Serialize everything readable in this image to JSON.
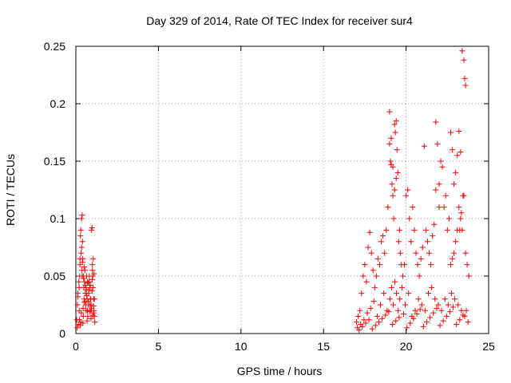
{
  "chart_data": {
    "type": "scatter",
    "title": "Day 329 of 2014, Rate Of TEC Index for receiver sur4",
    "xlabel": "GPS time / hours",
    "ylabel": "ROTI / TECUs",
    "xlim": [
      0,
      25
    ],
    "ylim": [
      0,
      0.25
    ],
    "x_ticks": [
      "0",
      "5",
      "10",
      "15",
      "20",
      "25"
    ],
    "y_ticks": [
      "0",
      "0.05",
      "0.1",
      "0.15",
      "0.2",
      "0.25"
    ],
    "grid": true,
    "marker": "+",
    "color": "#ff0000",
    "series": [
      {
        "x": [
          0.05,
          0.1,
          0.12,
          0.18,
          0.2,
          0.25,
          0.28,
          0.3,
          0.32,
          0.35,
          0.38,
          0.4,
          0.42,
          0.45,
          0.48,
          0.5,
          0.52,
          0.55,
          0.58,
          0.6,
          0.62,
          0.65,
          0.68,
          0.7,
          0.72,
          0.75,
          0.78,
          0.8,
          0.82,
          0.85,
          0.88,
          0.9,
          0.92,
          0.95,
          0.98,
          1.0,
          1.02,
          1.05,
          1.08,
          1.1,
          1.12,
          1.15,
          0.15,
          0.22,
          0.33,
          0.44,
          0.55,
          0.66,
          0.77,
          0.88,
          0.99,
          1.1,
          0.25,
          0.35,
          0.4,
          0.5,
          0.7,
          0.9,
          1.0,
          1.05,
          0.08,
          0.3,
          0.45,
          0.62,
          0.85,
          1.12,
          0.2,
          0.38,
          0.58,
          0.75,
          0.95,
          1.08,
          0.27,
          0.43,
          0.68,
          0.92,
          1.02,
          0.13,
          0.53,
          0.83,
          0.36,
          0.47,
          0.57,
          0.98,
          1.07,
          0.23,
          0.73,
          0.64
        ],
        "y": [
          0.012,
          0.025,
          0.035,
          0.045,
          0.02,
          0.06,
          0.085,
          0.09,
          0.07,
          0.1,
          0.103,
          0.08,
          0.065,
          0.05,
          0.04,
          0.03,
          0.045,
          0.055,
          0.035,
          0.025,
          0.04,
          0.05,
          0.03,
          0.02,
          0.015,
          0.025,
          0.035,
          0.045,
          0.05,
          0.04,
          0.03,
          0.02,
          0.025,
          0.09,
          0.092,
          0.06,
          0.05,
          0.04,
          0.03,
          0.02,
          0.015,
          0.01,
          0.008,
          0.012,
          0.018,
          0.022,
          0.028,
          0.033,
          0.038,
          0.042,
          0.047,
          0.052,
          0.065,
          0.075,
          0.062,
          0.058,
          0.045,
          0.03,
          0.055,
          0.065,
          0.005,
          0.01,
          0.015,
          0.02,
          0.025,
          0.03,
          0.04,
          0.05,
          0.035,
          0.028,
          0.022,
          0.018,
          0.007,
          0.009,
          0.011,
          0.013,
          0.016,
          0.032,
          0.027,
          0.019,
          0.055,
          0.048,
          0.042,
          0.037,
          0.024,
          0.05,
          0.044,
          0.038
        ]
      },
      {
        "x": [
          17.0,
          17.1,
          17.2,
          17.3,
          17.4,
          17.5,
          17.6,
          17.7,
          17.8,
          17.9,
          18.0,
          18.1,
          18.2,
          18.3,
          18.4,
          18.5,
          18.6,
          18.7,
          18.8,
          18.9,
          19.0,
          19.05,
          19.1,
          19.15,
          19.2,
          19.25,
          19.3,
          19.35,
          19.4,
          19.45,
          19.5,
          19.55,
          19.6,
          19.65,
          19.7,
          19.8,
          19.9,
          20.0,
          20.1,
          20.2,
          20.3,
          20.4,
          20.5,
          20.6,
          20.7,
          20.8,
          20.9,
          21.0,
          21.1,
          21.2,
          21.3,
          21.4,
          21.5,
          21.6,
          21.7,
          21.8,
          21.9,
          22.0,
          22.1,
          22.2,
          22.3,
          22.4,
          22.5,
          22.6,
          22.7,
          22.8,
          22.9,
          23.0,
          23.1,
          23.2,
          23.3,
          23.4,
          23.5,
          23.6,
          23.7,
          23.8,
          17.05,
          17.25,
          17.45,
          17.65,
          17.85,
          18.05,
          18.25,
          18.45,
          18.65,
          18.85,
          19.02,
          19.12,
          19.22,
          19.32,
          19.42,
          19.52,
          19.62,
          19.75,
          19.95,
          20.15,
          20.35,
          20.55,
          20.75,
          20.95,
          21.15,
          21.35,
          21.55,
          21.75,
          21.95,
          22.15,
          22.35,
          22.55,
          22.75,
          22.95,
          23.15,
          23.35,
          23.55,
          23.75,
          17.15,
          17.35,
          17.55,
          17.75,
          17.95,
          18.15,
          18.35,
          18.55,
          18.75,
          18.95,
          19.18,
          19.38,
          19.58,
          19.85,
          20.05,
          20.25,
          20.45,
          20.65,
          20.85,
          21.05,
          21.25,
          21.45,
          21.65,
          21.85,
          22.05,
          22.25,
          22.45,
          22.65,
          22.85,
          23.05,
          23.25,
          23.45,
          23.65,
          23.4,
          23.5,
          23.55,
          23.6,
          23.3,
          23.2,
          23.1,
          23.0,
          22.9,
          22.8,
          22.7,
          19.0,
          19.1,
          19.2,
          19.3,
          19.4,
          21.8,
          22.0,
          23.25,
          23.35,
          23.45
        ],
        "y": [
          0.01,
          0.015,
          0.02,
          0.035,
          0.05,
          0.06,
          0.045,
          0.075,
          0.088,
          0.07,
          0.055,
          0.04,
          0.05,
          0.065,
          0.06,
          0.08,
          0.085,
          0.07,
          0.09,
          0.11,
          0.193,
          0.15,
          0.147,
          0.13,
          0.12,
          0.1,
          0.182,
          0.175,
          0.185,
          0.16,
          0.14,
          0.08,
          0.09,
          0.07,
          0.06,
          0.05,
          0.06,
          0.12,
          0.125,
          0.1,
          0.08,
          0.11,
          0.09,
          0.07,
          0.06,
          0.05,
          0.065,
          0.075,
          0.163,
          0.09,
          0.08,
          0.07,
          0.06,
          0.085,
          0.095,
          0.184,
          0.165,
          0.13,
          0.15,
          0.145,
          0.11,
          0.12,
          0.09,
          0.1,
          0.175,
          0.16,
          0.13,
          0.14,
          0.155,
          0.176,
          0.158,
          0.09,
          0.12,
          0.07,
          0.06,
          0.05,
          0.005,
          0.008,
          0.012,
          0.018,
          0.022,
          0.028,
          0.015,
          0.025,
          0.035,
          0.02,
          0.03,
          0.04,
          0.025,
          0.045,
          0.035,
          0.02,
          0.03,
          0.04,
          0.025,
          0.035,
          0.015,
          0.02,
          0.03,
          0.025,
          0.02,
          0.035,
          0.04,
          0.03,
          0.025,
          0.02,
          0.03,
          0.025,
          0.035,
          0.03,
          0.025,
          0.02,
          0.015,
          0.01,
          0.003,
          0.006,
          0.009,
          0.012,
          0.004,
          0.007,
          0.01,
          0.013,
          0.016,
          0.019,
          0.008,
          0.011,
          0.014,
          0.017,
          0.005,
          0.009,
          0.013,
          0.017,
          0.021,
          0.006,
          0.01,
          0.014,
          0.018,
          0.022,
          0.007,
          0.011,
          0.015,
          0.019,
          0.023,
          0.008,
          0.012,
          0.016,
          0.02,
          0.246,
          0.238,
          0.222,
          0.216,
          0.1,
          0.11,
          0.09,
          0.08,
          0.07,
          0.065,
          0.06,
          0.165,
          0.17,
          0.145,
          0.125,
          0.135,
          0.125,
          0.11,
          0.09,
          0.105,
          0.12
        ]
      }
    ]
  }
}
